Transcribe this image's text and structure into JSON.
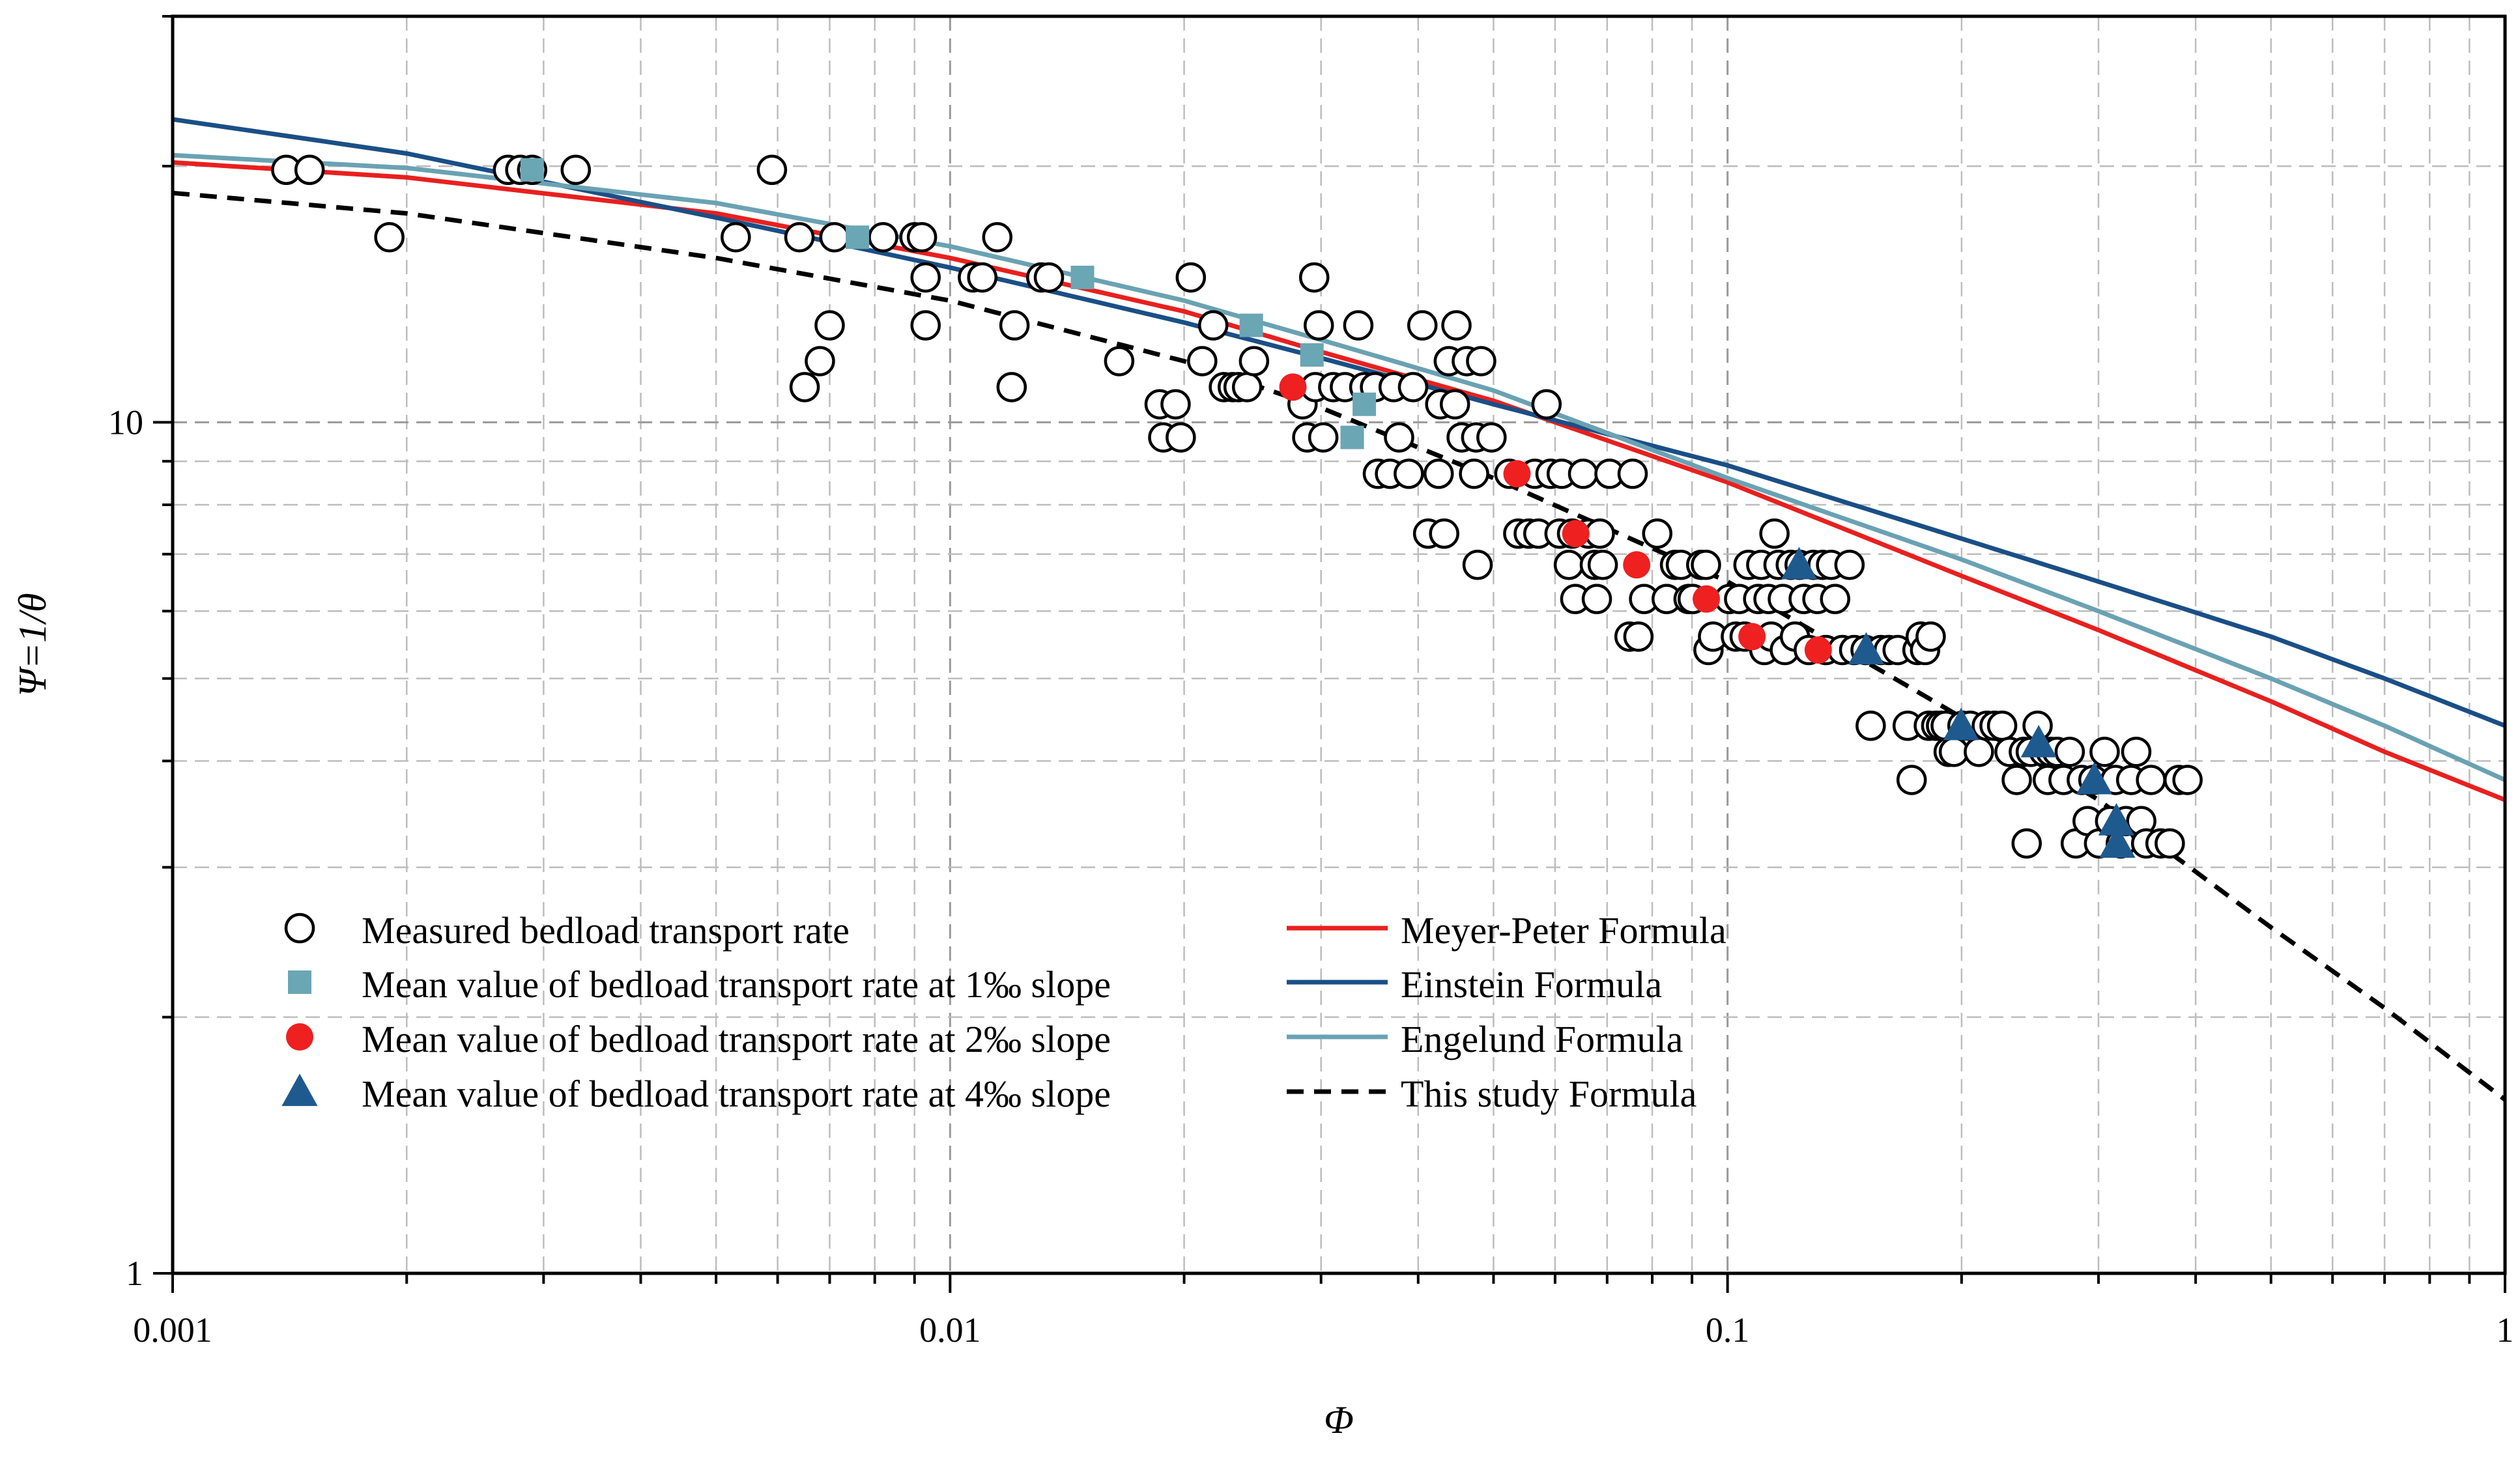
{
  "chart_data": {
    "type": "scatter",
    "title": "",
    "xlabel": "Φ",
    "ylabel": "Ψ=1/θ",
    "xscale": "log",
    "yscale": "log",
    "xlim": [
      0.001,
      1
    ],
    "ylim": [
      1,
      30
    ],
    "xticks": [
      {
        "value": 0.001,
        "label": "0.001"
      },
      {
        "value": 0.01,
        "label": "0.01"
      },
      {
        "value": 0.1,
        "label": "0.1"
      },
      {
        "value": 1,
        "label": "1"
      }
    ],
    "yticks": [
      {
        "value": 1,
        "label": "1"
      },
      {
        "value": 10,
        "label": "10"
      }
    ],
    "grid": true,
    "legend_position": "bottom-left",
    "scatter_series": [
      {
        "name": "Measured bedload transport rate",
        "marker": "open-circle",
        "color": "#000000",
        "points": [
          [
            0.0014,
            19.8
          ],
          [
            0.0015,
            19.8
          ],
          [
            0.0019,
            16.5
          ],
          [
            0.0027,
            19.8
          ],
          [
            0.0028,
            19.8
          ],
          [
            0.0029,
            19.8
          ],
          [
            0.0033,
            19.8
          ],
          [
            0.0053,
            16.5
          ],
          [
            0.0059,
            19.8
          ],
          [
            0.0064,
            16.5
          ],
          [
            0.0065,
            11
          ],
          [
            0.0068,
            11.8
          ],
          [
            0.007,
            13
          ],
          [
            0.0071,
            16.5
          ],
          [
            0.0082,
            16.5
          ],
          [
            0.009,
            16.5
          ],
          [
            0.0092,
            16.5
          ],
          [
            0.0093,
            13
          ],
          [
            0.0093,
            14.8
          ],
          [
            0.0107,
            14.8
          ],
          [
            0.011,
            14.8
          ],
          [
            0.0115,
            16.5
          ],
          [
            0.012,
            11
          ],
          [
            0.0121,
            13
          ],
          [
            0.0131,
            14.8
          ],
          [
            0.0134,
            14.8
          ],
          [
            0.0165,
            11.8
          ],
          [
            0.0186,
            10.5
          ],
          [
            0.0188,
            9.6
          ],
          [
            0.0195,
            10.5
          ],
          [
            0.0198,
            9.6
          ],
          [
            0.0204,
            14.8
          ],
          [
            0.0211,
            11.8
          ],
          [
            0.0218,
            13
          ],
          [
            0.0225,
            11
          ],
          [
            0.0231,
            11
          ],
          [
            0.0235,
            11
          ],
          [
            0.0241,
            11
          ],
          [
            0.0246,
            11.8
          ],
          [
            0.0284,
            10.5
          ],
          [
            0.0288,
            9.6
          ],
          [
            0.0294,
            14.8
          ],
          [
            0.0295,
            11
          ],
          [
            0.0298,
            13
          ],
          [
            0.0302,
            9.6
          ],
          [
            0.0311,
            11
          ],
          [
            0.0322,
            11
          ],
          [
            0.0335,
            13
          ],
          [
            0.0341,
            11
          ],
          [
            0.0352,
            11
          ],
          [
            0.0355,
            8.7
          ],
          [
            0.0368,
            8.7
          ],
          [
            0.0372,
            11
          ],
          [
            0.0378,
            9.6
          ],
          [
            0.0389,
            8.7
          ],
          [
            0.0394,
            11
          ],
          [
            0.0405,
            13
          ],
          [
            0.0412,
            7.4
          ],
          [
            0.0425,
            8.7
          ],
          [
            0.0427,
            10.5
          ],
          [
            0.0432,
            7.4
          ],
          [
            0.0438,
            11.8
          ],
          [
            0.0446,
            10.5
          ],
          [
            0.0448,
            13
          ],
          [
            0.0455,
            9.6
          ],
          [
            0.0462,
            11.8
          ],
          [
            0.0472,
            8.7
          ],
          [
            0.0475,
            9.6
          ],
          [
            0.0477,
            6.8
          ],
          [
            0.0482,
            11.8
          ],
          [
            0.0497,
            9.6
          ],
          [
            0.0524,
            8.7
          ],
          [
            0.0538,
            7.4
          ],
          [
            0.0555,
            7.4
          ],
          [
            0.0565,
            8.7
          ],
          [
            0.0571,
            7.4
          ],
          [
            0.0585,
            10.5
          ],
          [
            0.0592,
            8.7
          ],
          [
            0.0608,
            7.4
          ],
          [
            0.0612,
            8.7
          ],
          [
            0.0625,
            6.8
          ],
          [
            0.0631,
            7.4
          ],
          [
            0.0637,
            6.2
          ],
          [
            0.0652,
            8.7
          ],
          [
            0.0662,
            7.4
          ],
          [
            0.0675,
            6.8
          ],
          [
            0.0679,
            6.2
          ],
          [
            0.0685,
            7.4
          ],
          [
            0.0691,
            6.8
          ],
          [
            0.0705,
            8.7
          ],
          [
            0.0748,
            5.6
          ],
          [
            0.0755,
            8.7
          ],
          [
            0.0768,
            5.6
          ],
          [
            0.0781,
            6.2
          ],
          [
            0.0812,
            7.4
          ],
          [
            0.0835,
            6.2
          ],
          [
            0.0856,
            6.8
          ],
          [
            0.0871,
            6.8
          ],
          [
            0.0891,
            6.2
          ],
          [
            0.0902,
            6.2
          ],
          [
            0.0925,
            6.8
          ],
          [
            0.0938,
            6.8
          ],
          [
            0.0945,
            5.4
          ],
          [
            0.0958,
            5.6
          ],
          [
            0.1005,
            6.2
          ],
          [
            0.1025,
            5.6
          ],
          [
            0.1035,
            6.2
          ],
          [
            0.1052,
            5.6
          ],
          [
            0.1064,
            6.8
          ],
          [
            0.1095,
            6.2
          ],
          [
            0.1105,
            6.8
          ],
          [
            0.1115,
            5.4
          ],
          [
            0.1129,
            6.2
          ],
          [
            0.1138,
            5.6
          ],
          [
            0.1149,
            7.4
          ],
          [
            0.1163,
            6.8
          ],
          [
            0.1178,
            6.2
          ],
          [
            0.1185,
            5.4
          ],
          [
            0.1206,
            6.8
          ],
          [
            0.1221,
            5.6
          ],
          [
            0.1238,
            6.8
          ],
          [
            0.1253,
            6.2
          ],
          [
            0.1272,
            5.4
          ],
          [
            0.1289,
            6.8
          ],
          [
            0.1305,
            6.2
          ],
          [
            0.1325,
            6.8
          ],
          [
            0.1338,
            5.4
          ],
          [
            0.1359,
            6.8
          ],
          [
            0.1375,
            6.2
          ],
          [
            0.1405,
            5.4
          ],
          [
            0.1435,
            6.8
          ],
          [
            0.1455,
            5.4
          ],
          [
            0.1505,
            5.4
          ],
          [
            0.1528,
            4.4
          ],
          [
            0.1575,
            5.4
          ],
          [
            0.1612,
            5.4
          ],
          [
            0.1655,
            5.4
          ],
          [
            0.1705,
            4.4
          ],
          [
            0.1725,
            3.8
          ],
          [
            0.1755,
            5.4
          ],
          [
            0.1772,
            5.6
          ],
          [
            0.1795,
            5.4
          ],
          [
            0.1815,
            4.4
          ],
          [
            0.1825,
            5.6
          ],
          [
            0.1855,
            4.4
          ],
          [
            0.1882,
            4.4
          ],
          [
            0.1908,
            4.4
          ],
          [
            0.1925,
            4.1
          ],
          [
            0.1955,
            4.1
          ],
          [
            0.2005,
            4.4
          ],
          [
            0.2052,
            4.4
          ],
          [
            0.2105,
            4.1
          ],
          [
            0.2155,
            4.4
          ],
          [
            0.2205,
            4.4
          ],
          [
            0.2255,
            4.4
          ],
          [
            0.2305,
            4.1
          ],
          [
            0.2355,
            3.8
          ],
          [
            0.2405,
            4.1
          ],
          [
            0.2425,
            3.2
          ],
          [
            0.2455,
            4.1
          ],
          [
            0.2505,
            4.4
          ],
          [
            0.2555,
            4.1
          ],
          [
            0.2582,
            3.8
          ],
          [
            0.2605,
            4.1
          ],
          [
            0.2655,
            4.1
          ],
          [
            0.2705,
            3.8
          ],
          [
            0.2755,
            4.1
          ],
          [
            0.2805,
            3.2
          ],
          [
            0.2855,
            3.8
          ],
          [
            0.2905,
            3.4
          ],
          [
            0.2955,
            3.8
          ],
          [
            0.3005,
            3.2
          ],
          [
            0.3055,
            4.1
          ],
          [
            0.3105,
            3.4
          ],
          [
            0.3155,
            3.8
          ],
          [
            0.3205,
            3.2
          ],
          [
            0.3255,
            3.4
          ],
          [
            0.3305,
            3.8
          ],
          [
            0.3355,
            4.1
          ],
          [
            0.3405,
            3.4
          ],
          [
            0.3455,
            3.2
          ],
          [
            0.3505,
            3.8
          ],
          [
            0.3605,
            3.2
          ],
          [
            0.3705,
            3.2
          ],
          [
            0.3805,
            3.8
          ],
          [
            0.3905,
            3.8
          ]
        ]
      },
      {
        "name": "Mean value of bedload transport rate at 1‰ slope",
        "marker": "square",
        "color": "#6ba6b5",
        "points": [
          [
            0.0029,
            19.8
          ],
          [
            0.0076,
            16.5
          ],
          [
            0.0148,
            14.8
          ],
          [
            0.0244,
            13
          ],
          [
            0.0292,
            12
          ],
          [
            0.0329,
            9.6
          ],
          [
            0.0341,
            10.5
          ]
        ]
      },
      {
        "name": "Mean value of bedload transport rate at 2‰ slope",
        "marker": "filled-circle",
        "color": "#ee2020",
        "points": [
          [
            0.0276,
            11
          ],
          [
            0.0536,
            8.7
          ],
          [
            0.0638,
            7.4
          ],
          [
            0.0764,
            6.8
          ],
          [
            0.0939,
            6.2
          ],
          [
            0.1075,
            5.6
          ],
          [
            0.1308,
            5.4
          ]
        ]
      },
      {
        "name": "Mean value of bedload transport rate at 4‰ slope",
        "marker": "triangle",
        "color": "#1f5a8f",
        "points": [
          [
            0.1236,
            6.8
          ],
          [
            0.1508,
            5.4
          ],
          [
            0.1997,
            4.4
          ],
          [
            0.2513,
            4.2
          ],
          [
            0.2963,
            3.8
          ],
          [
            0.3163,
            3.4
          ],
          [
            0.3172,
            3.2
          ]
        ]
      }
    ],
    "curves": [
      {
        "name": "Meyer-Peter Formula",
        "color": "#e8201f",
        "dash": "solid",
        "points": [
          [
            0.001,
            20.2
          ],
          [
            0.002,
            19.4
          ],
          [
            0.005,
            17.6
          ],
          [
            0.01,
            15.6
          ],
          [
            0.02,
            13.5
          ],
          [
            0.03,
            12.1
          ],
          [
            0.05,
            10.6
          ],
          [
            0.1,
            8.5
          ],
          [
            0.2,
            6.6
          ],
          [
            0.3,
            5.7
          ],
          [
            0.5,
            4.7
          ],
          [
            0.7,
            4.1
          ],
          [
            1,
            3.6
          ]
        ]
      },
      {
        "name": "Einstein Formula",
        "color": "#1a4f86",
        "dash": "solid",
        "points": [
          [
            0.001,
            22.7
          ],
          [
            0.002,
            20.7
          ],
          [
            0.005,
            17.4
          ],
          [
            0.01,
            15.2
          ],
          [
            0.02,
            13.1
          ],
          [
            0.03,
            11.9
          ],
          [
            0.05,
            10.5
          ],
          [
            0.1,
            8.9
          ],
          [
            0.2,
            7.3
          ],
          [
            0.3,
            6.5
          ],
          [
            0.5,
            5.6
          ],
          [
            0.7,
            5
          ],
          [
            1,
            4.4
          ]
        ]
      },
      {
        "name": "Engelund Formula",
        "color": "#6aa2b3",
        "dash": "solid",
        "points": [
          [
            0.001,
            20.6
          ],
          [
            0.002,
            19.9
          ],
          [
            0.005,
            18.1
          ],
          [
            0.01,
            16.1
          ],
          [
            0.02,
            13.9
          ],
          [
            0.03,
            12.5
          ],
          [
            0.05,
            10.9
          ],
          [
            0.1,
            8.6
          ],
          [
            0.2,
            6.9
          ],
          [
            0.3,
            6
          ],
          [
            0.5,
            5
          ],
          [
            0.7,
            4.4
          ],
          [
            1,
            3.8
          ]
        ]
      },
      {
        "name": "This study Formula",
        "color": "#000000",
        "dash": "dashed",
        "points": [
          [
            0.001,
            18.6
          ],
          [
            0.002,
            17.6
          ],
          [
            0.005,
            15.6
          ],
          [
            0.01,
            13.9
          ],
          [
            0.02,
            11.8
          ],
          [
            0.03,
            10.4
          ],
          [
            0.05,
            8.6
          ],
          [
            0.1,
            6.5
          ],
          [
            0.2,
            4.5
          ],
          [
            0.3,
            3.6
          ],
          [
            0.5,
            2.55
          ],
          [
            0.7,
            2.05
          ],
          [
            1,
            1.6
          ]
        ]
      }
    ],
    "legend": {
      "left": [
        "Measured bedload transport rate",
        "Mean value of bedload transport rate at 1‰ slope",
        "Mean value of bedload transport rate at 2‰ slope",
        "Mean value of bedload transport rate at 4‰ slope"
      ],
      "right": [
        "Meyer-Peter Formula",
        "Einstein Formula",
        "Engelund Formula",
        "This study Formula"
      ]
    }
  }
}
